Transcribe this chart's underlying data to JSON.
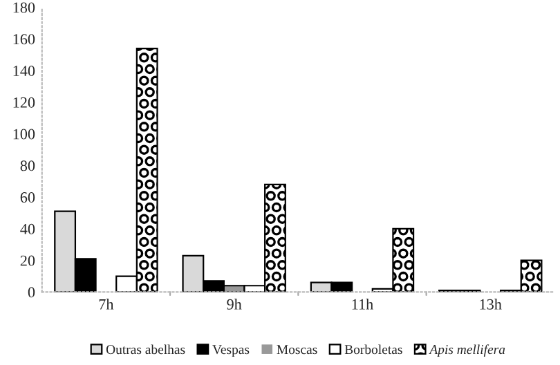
{
  "chart_data": {
    "type": "bar",
    "categories": [
      "7h",
      "9h",
      "11h",
      "13h"
    ],
    "series": [
      {
        "name": "Outras abelhas",
        "color": "#d9d9d9",
        "values": [
          51,
          23,
          6,
          1
        ]
      },
      {
        "name": "Vespas",
        "color": "#000000",
        "values": [
          21,
          7,
          6,
          1
        ]
      },
      {
        "name": "Moscas",
        "color": "#999999",
        "values": [
          0,
          4,
          0,
          0
        ]
      },
      {
        "name": "Borboletas",
        "color": "#ffffff",
        "values": [
          10,
          4,
          2,
          1
        ]
      },
      {
        "name": "Apis mellifera",
        "color": "#000000",
        "values": [
          154,
          68,
          40,
          20
        ]
      }
    ],
    "ylim": [
      0,
      180
    ],
    "yticks": [
      0,
      20,
      40,
      60,
      80,
      100,
      120,
      140,
      160,
      180
    ],
    "grid": false,
    "legend": "bottom"
  }
}
